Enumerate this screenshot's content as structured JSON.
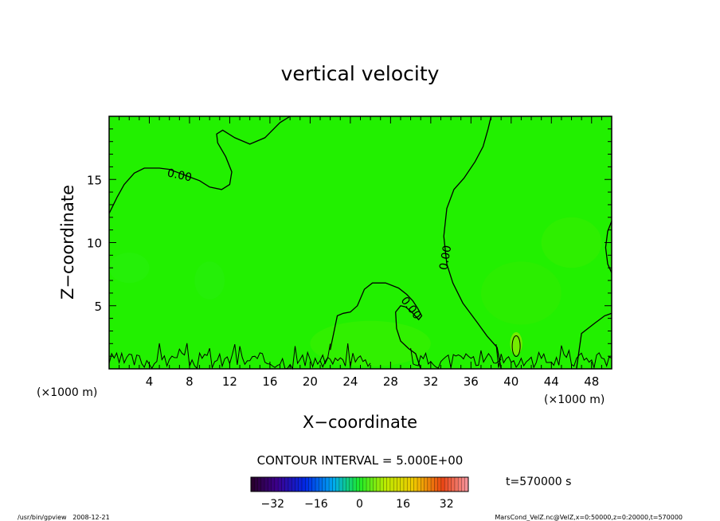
{
  "chart_data": {
    "type": "heatmap",
    "title": "vertical velocity",
    "xlabel": "X−coordinate",
    "ylabel": "Z−coordinate",
    "x_unit_label_left": "(×1000 m)",
    "x_unit_label_right": "(×1000 m)",
    "xlim": [
      0,
      50
    ],
    "ylim": [
      0,
      20
    ],
    "x_ticks": [
      4,
      8,
      12,
      16,
      20,
      24,
      28,
      32,
      36,
      40,
      44,
      48
    ],
    "y_ticks": [
      5,
      10,
      15
    ],
    "contour_interval_text": "CONTOUR INTERVAL = 5.000E+00",
    "contour_label": "0.00",
    "colorbar": {
      "min": -40,
      "max": 40,
      "ticks": [
        -32,
        -16,
        0,
        16,
        32
      ]
    },
    "time_label": "t=570000 s",
    "footer_left": "/usr/bin/gpview   2008-12-21",
    "footer_right": "MarsCond_VelZ.nc@VelZ,x=0:50000,z=0:20000,t=570000",
    "colors": {
      "field_background": "#22f000",
      "frame": "#000000"
    },
    "contours": [
      {
        "level": 0,
        "points": [
          [
            0,
            12.3
          ],
          [
            0.8,
            13.6
          ],
          [
            1.5,
            14.6
          ],
          [
            2.5,
            15.5
          ],
          [
            3.5,
            15.9
          ],
          [
            5,
            15.9
          ],
          [
            6,
            15.8
          ],
          [
            7,
            15.5
          ],
          [
            8,
            15.2
          ],
          [
            9,
            14.9
          ],
          [
            10,
            14.4
          ],
          [
            11.2,
            14.2
          ],
          [
            12,
            14.6
          ],
          [
            12.2,
            15.6
          ],
          [
            11.6,
            16.8
          ],
          [
            10.8,
            17.9
          ],
          [
            10.7,
            18.6
          ],
          [
            11.3,
            18.9
          ],
          [
            12.5,
            18.3
          ],
          [
            14,
            17.8
          ],
          [
            15.5,
            18.3
          ],
          [
            17,
            19.5
          ],
          [
            18,
            20
          ]
        ]
      },
      {
        "level": 0,
        "points": [
          [
            38,
            20
          ],
          [
            37.7,
            19
          ],
          [
            37.2,
            17.6
          ],
          [
            36.4,
            16.4
          ],
          [
            35.3,
            15.1
          ],
          [
            34.3,
            14.2
          ],
          [
            33.6,
            12.7
          ],
          [
            33.3,
            10.5
          ],
          [
            33.6,
            8.3
          ],
          [
            34.2,
            6.8
          ],
          [
            35.2,
            5.2
          ],
          [
            36.6,
            3.7
          ],
          [
            37.6,
            2.6
          ],
          [
            38.6,
            1.7
          ],
          [
            39,
            0
          ]
        ]
      },
      {
        "level": 0,
        "points": [
          [
            22,
            1.5
          ],
          [
            22.7,
            4.2
          ],
          [
            23.3,
            4.4
          ],
          [
            24,
            4.5
          ],
          [
            24.7,
            5
          ],
          [
            25.4,
            6.3
          ],
          [
            26.2,
            6.8
          ],
          [
            27.5,
            6.8
          ],
          [
            28.8,
            6.4
          ],
          [
            29.6,
            5.9
          ],
          [
            30.2,
            5.4
          ],
          [
            30.7,
            4.8
          ],
          [
            31.1,
            4.2
          ],
          [
            30.8,
            3.9
          ],
          [
            30.1,
            4.5
          ],
          [
            29.5,
            4.9
          ],
          [
            29,
            5
          ],
          [
            28.5,
            4.5
          ],
          [
            28.6,
            3.2
          ],
          [
            29,
            2.2
          ],
          [
            29.8,
            1.6
          ],
          [
            30.5,
            1.2
          ],
          [
            31,
            0
          ]
        ]
      },
      {
        "level": 0,
        "points": [
          [
            46.5,
            0
          ],
          [
            47,
            2.8
          ],
          [
            48.3,
            3.6
          ],
          [
            49.3,
            4.2
          ],
          [
            50,
            4.4
          ]
        ]
      },
      {
        "level": 0,
        "points": [
          [
            50,
            11.7
          ],
          [
            49.6,
            10.9
          ],
          [
            49.4,
            9.6
          ],
          [
            49.6,
            8.3
          ],
          [
            50,
            7.6
          ]
        ]
      }
    ],
    "noise_bands": [
      {
        "x0": 0,
        "x1": 22,
        "seed": 3
      },
      {
        "x0": 21,
        "x1": 26,
        "seed": 7
      },
      {
        "x0": 30,
        "x1": 39,
        "seed": 11
      },
      {
        "x0": 38.5,
        "x1": 50,
        "seed": 17
      }
    ]
  }
}
